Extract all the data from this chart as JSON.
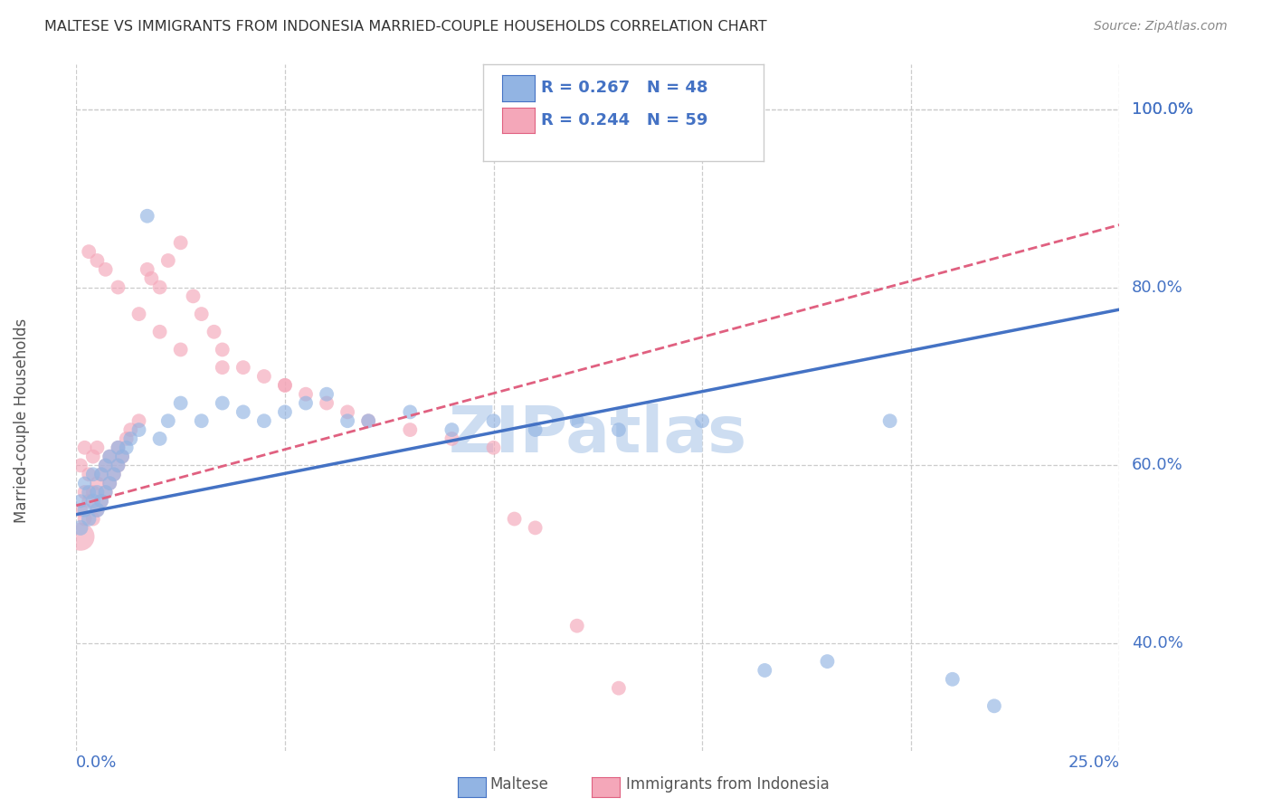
{
  "title": "MALTESE VS IMMIGRANTS FROM INDONESIA MARRIED-COUPLE HOUSEHOLDS CORRELATION CHART",
  "source": "Source: ZipAtlas.com",
  "ylabel": "Married-couple Households",
  "ytick_vals": [
    40.0,
    60.0,
    80.0,
    100.0
  ],
  "xlim": [
    0.0,
    0.25
  ],
  "ylim": [
    0.28,
    1.05
  ],
  "maltese_R": 0.267,
  "maltese_N": 48,
  "indonesia_R": 0.244,
  "indonesia_N": 59,
  "blue_color": "#92B4E3",
  "pink_color": "#F4A7B9",
  "blue_line": "#4472C4",
  "pink_line": "#E06080",
  "watermark": "ZIPatlas",
  "watermark_color": "#C5D8EF",
  "background": "#FFFFFF",
  "grid_color": "#CCCCCC",
  "title_color": "#333333",
  "axis_label_color": "#4472C4",
  "legend_text_color": "#4472C4",
  "legend_N_color": "#E06080",
  "maltese_x": [
    0.001,
    0.001,
    0.002,
    0.002,
    0.003,
    0.003,
    0.004,
    0.004,
    0.005,
    0.005,
    0.006,
    0.006,
    0.007,
    0.007,
    0.008,
    0.008,
    0.009,
    0.01,
    0.01,
    0.011,
    0.012,
    0.013,
    0.015,
    0.017,
    0.02,
    0.022,
    0.025,
    0.03,
    0.035,
    0.04,
    0.045,
    0.05,
    0.055,
    0.06,
    0.065,
    0.07,
    0.08,
    0.09,
    0.1,
    0.11,
    0.12,
    0.13,
    0.15,
    0.165,
    0.18,
    0.195,
    0.21,
    0.22
  ],
  "maltese_y": [
    0.53,
    0.56,
    0.55,
    0.58,
    0.54,
    0.57,
    0.56,
    0.59,
    0.55,
    0.57,
    0.56,
    0.59,
    0.57,
    0.6,
    0.58,
    0.61,
    0.59,
    0.6,
    0.62,
    0.61,
    0.62,
    0.63,
    0.64,
    0.88,
    0.63,
    0.65,
    0.67,
    0.65,
    0.67,
    0.66,
    0.65,
    0.66,
    0.67,
    0.68,
    0.65,
    0.65,
    0.66,
    0.64,
    0.65,
    0.64,
    0.65,
    0.64,
    0.65,
    0.37,
    0.38,
    0.65,
    0.36,
    0.33
  ],
  "maltese_size": [
    150,
    120,
    130,
    120,
    140,
    130,
    140,
    130,
    140,
    130,
    130,
    130,
    130,
    130,
    130,
    130,
    130,
    130,
    130,
    130,
    130,
    130,
    130,
    130,
    130,
    130,
    130,
    130,
    130,
    130,
    130,
    130,
    130,
    130,
    130,
    130,
    130,
    130,
    130,
    130,
    130,
    130,
    130,
    130,
    130,
    130,
    130,
    130
  ],
  "indonesia_x": [
    0.001,
    0.001,
    0.001,
    0.002,
    0.002,
    0.002,
    0.003,
    0.003,
    0.004,
    0.004,
    0.004,
    0.005,
    0.005,
    0.005,
    0.006,
    0.006,
    0.007,
    0.007,
    0.008,
    0.008,
    0.009,
    0.01,
    0.01,
    0.011,
    0.012,
    0.013,
    0.015,
    0.017,
    0.018,
    0.02,
    0.022,
    0.025,
    0.028,
    0.03,
    0.033,
    0.035,
    0.04,
    0.045,
    0.05,
    0.055,
    0.06,
    0.065,
    0.07,
    0.08,
    0.09,
    0.1,
    0.105,
    0.11,
    0.12,
    0.13,
    0.003,
    0.005,
    0.007,
    0.01,
    0.015,
    0.02,
    0.025,
    0.035,
    0.05
  ],
  "indonesia_y": [
    0.52,
    0.55,
    0.6,
    0.54,
    0.57,
    0.62,
    0.56,
    0.59,
    0.54,
    0.57,
    0.61,
    0.55,
    0.58,
    0.62,
    0.56,
    0.59,
    0.57,
    0.6,
    0.58,
    0.61,
    0.59,
    0.6,
    0.62,
    0.61,
    0.63,
    0.64,
    0.65,
    0.82,
    0.81,
    0.8,
    0.83,
    0.85,
    0.79,
    0.77,
    0.75,
    0.73,
    0.71,
    0.7,
    0.69,
    0.68,
    0.67,
    0.66,
    0.65,
    0.64,
    0.63,
    0.62,
    0.54,
    0.53,
    0.42,
    0.35,
    0.84,
    0.83,
    0.82,
    0.8,
    0.77,
    0.75,
    0.73,
    0.71,
    0.69
  ],
  "indonesia_size": [
    500,
    130,
    130,
    130,
    130,
    130,
    130,
    130,
    130,
    130,
    130,
    130,
    130,
    130,
    130,
    130,
    130,
    130,
    130,
    130,
    130,
    130,
    130,
    130,
    130,
    130,
    130,
    130,
    130,
    130,
    130,
    130,
    130,
    130,
    130,
    130,
    130,
    130,
    130,
    130,
    130,
    130,
    130,
    130,
    130,
    130,
    130,
    130,
    130,
    130,
    130,
    130,
    130,
    130,
    130,
    130,
    130,
    130,
    130
  ],
  "trend_blue_x0": 0.0,
  "trend_blue_y0": 0.545,
  "trend_blue_x1": 0.25,
  "trend_blue_y1": 0.775,
  "trend_pink_x0": 0.0,
  "trend_pink_y0": 0.555,
  "trend_pink_x1": 0.25,
  "trend_pink_y1": 0.87
}
